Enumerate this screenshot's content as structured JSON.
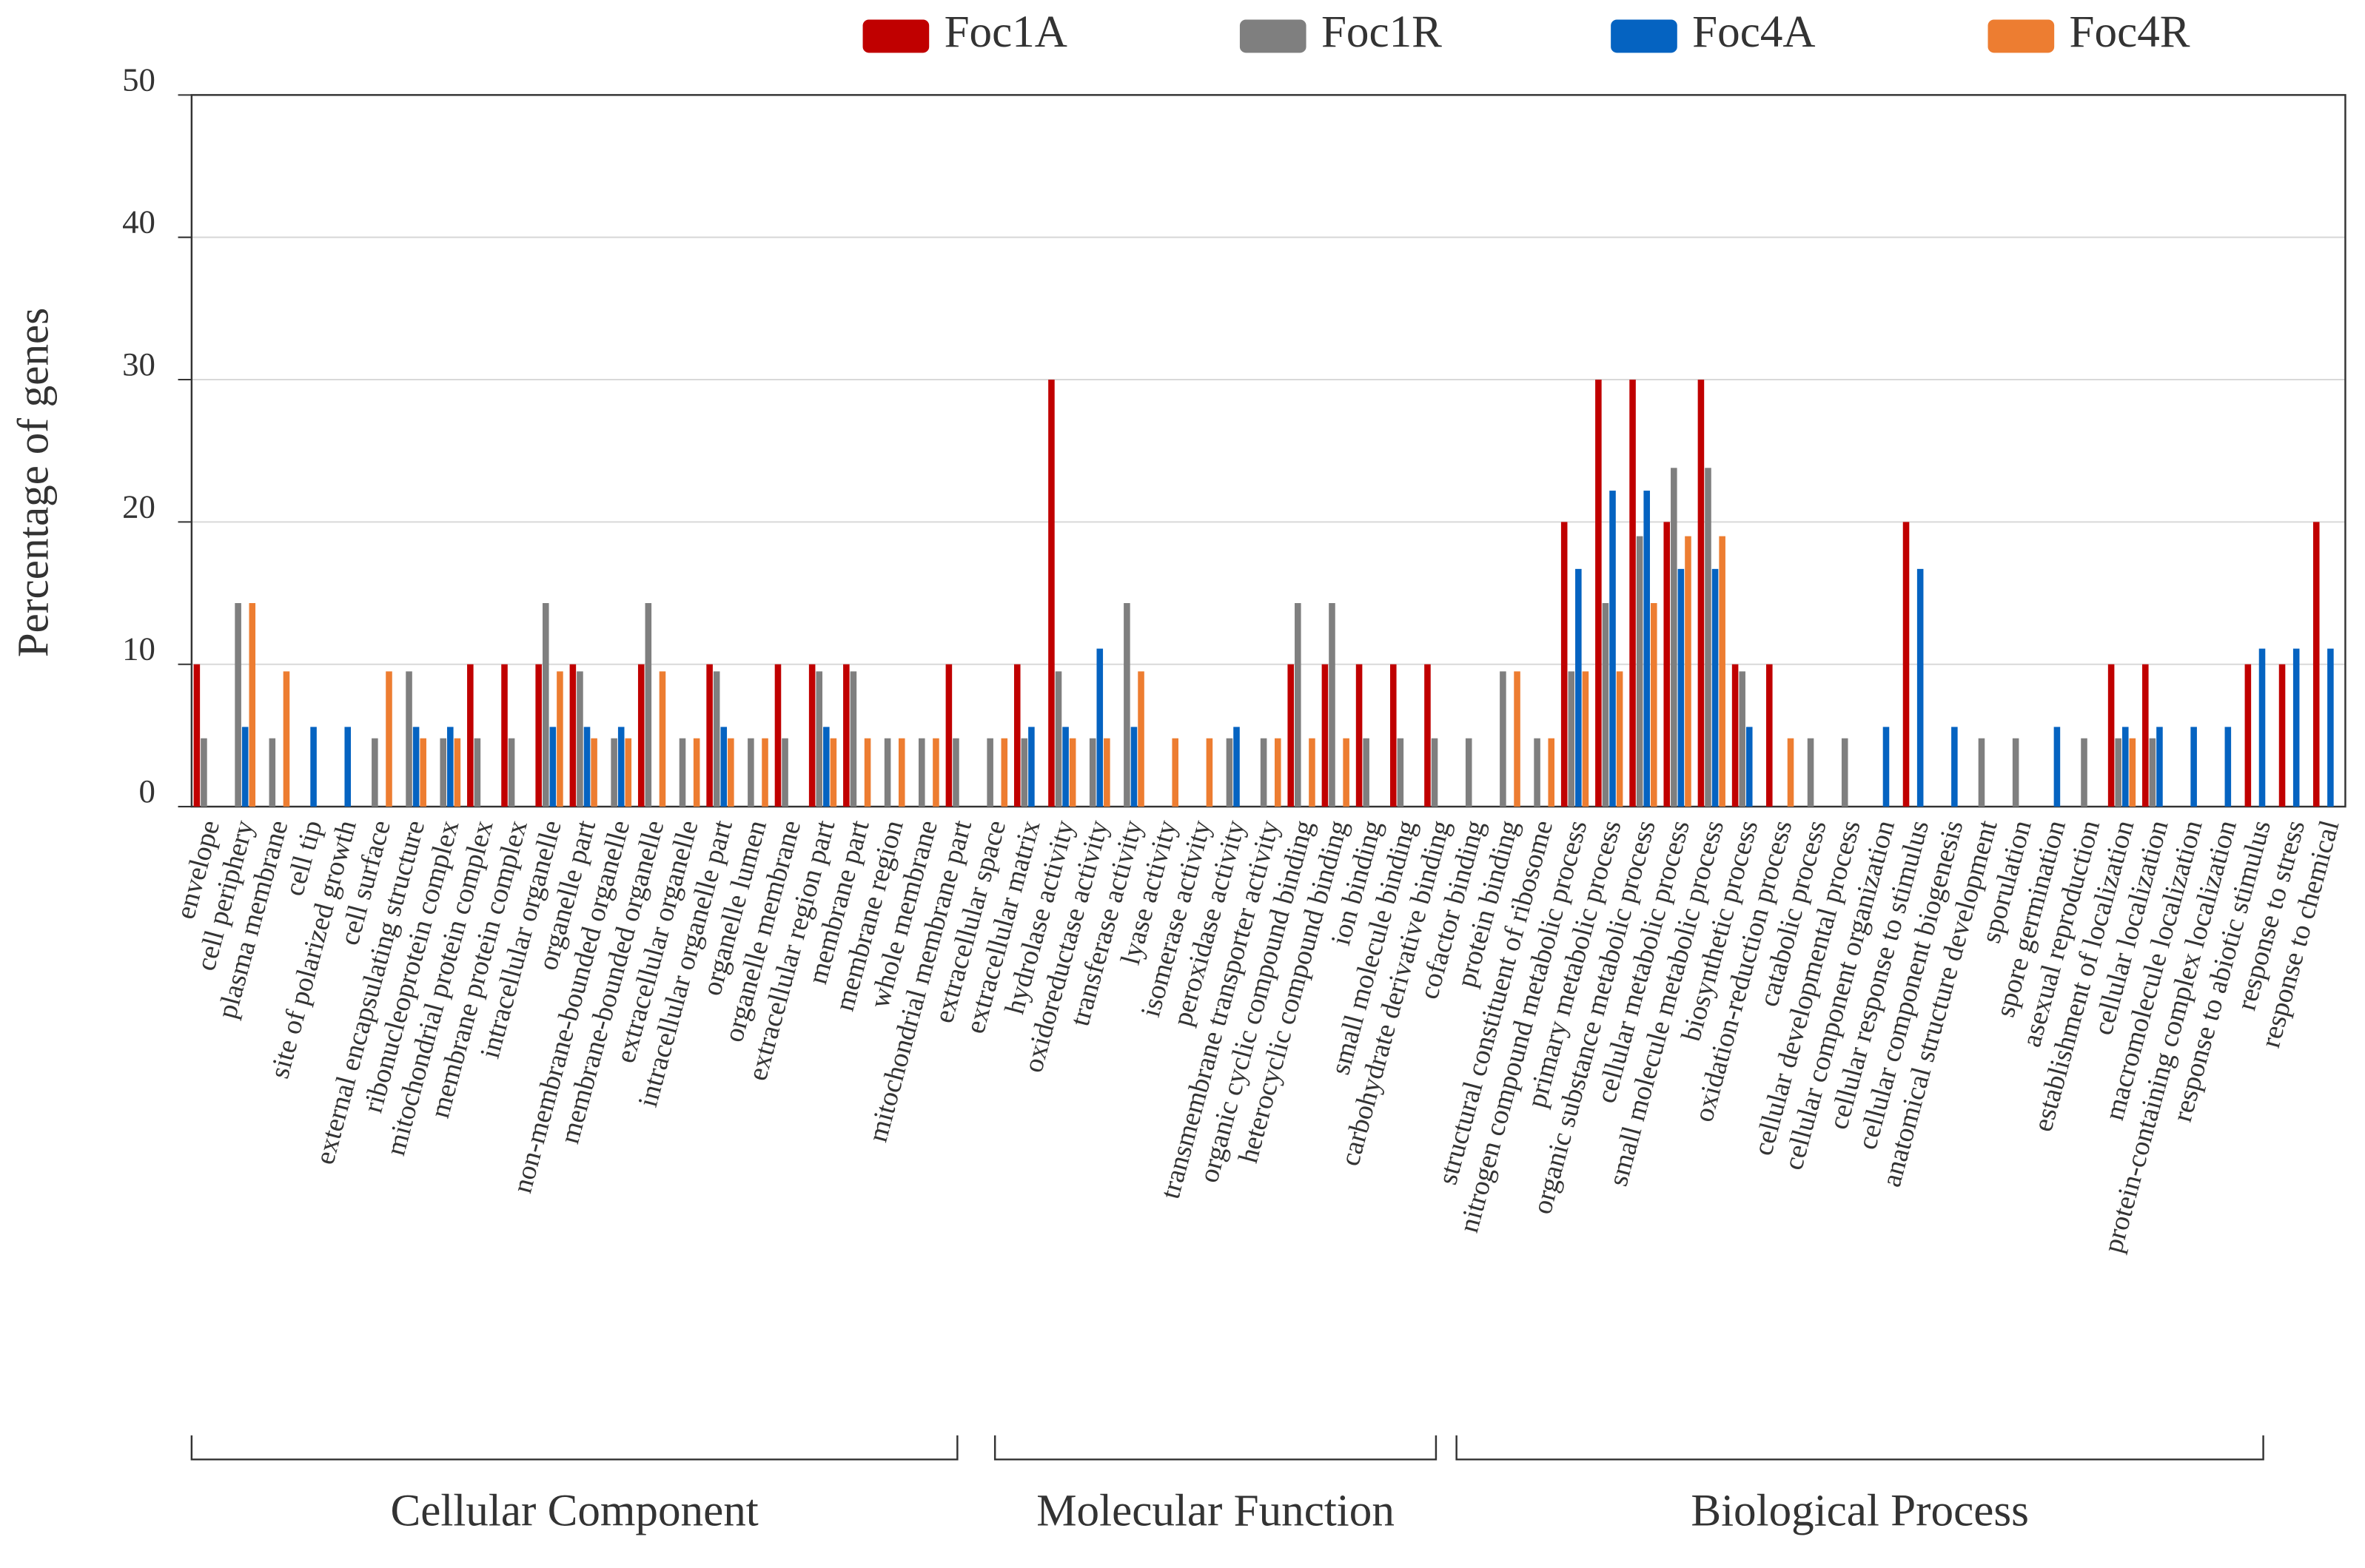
{
  "chart_data": {
    "type": "bar",
    "y_label": "Percentage of genes",
    "ylim": [
      0,
      50
    ],
    "yticks": [
      0,
      10,
      20,
      30,
      40,
      50
    ],
    "grid": true,
    "legend": "top",
    "groups": [
      "Cellular Component",
      "Molecular Function",
      "Biological Process"
    ],
    "categories": [
      "envelope",
      "cell periphery",
      "plasma membrane",
      "cell tip",
      "site of polarized growth",
      "cell surface",
      "external encapsulating structure",
      "ribonucleoprotein complex",
      "mitochondrial protein complex",
      "membrane protein complex",
      "intracellular organelle",
      "organelle part",
      "non-membrane-bounded organelle",
      "membrane-bounded organelle",
      "extracellular organelle",
      "intracellular organelle part",
      "organelle lumen",
      "organelle membrane",
      "extracellular region part",
      "membrane part",
      "membrane region",
      "whole membrane",
      "mitochondrial membrane part",
      "extracellular space",
      "extracellular matrix",
      "hydrolase activity",
      "oxidoreductase activity",
      "transferase activity",
      "lyase activity",
      "isomerase activity",
      "peroxidase activity",
      "transmembrane transporter activity",
      "organic cyclic compound binding",
      "heterocyclic compound binding",
      "ion binding",
      "small molecule binding",
      "carbohydrate derivative binding",
      "cofactor binding",
      "protein binding",
      "structural constituent of ribosome",
      "nitrogen compound metabolic process",
      "primary metabolic process",
      "organic substance metabolic process",
      "cellular metabolic process",
      "small molecule metabolic process",
      "biosynthetic process",
      "oxidation-reduction process",
      "catabolic process",
      "cellular developmental process",
      "cellular component organization",
      "cellular response to stimulus",
      "cellular component biogenesis",
      "anatomical structure development",
      "sporulation",
      "spore germination",
      "asexual reproduction",
      "establishment of localization",
      "cellular localization",
      "macromolecule localization",
      "protein-containing complex localization",
      "response to abiotic stimulus",
      "response to stress",
      "response to chemical"
    ],
    "series": [
      {
        "name": "Foc1A",
        "color": "#c00000",
        "values": [
          10,
          0,
          0,
          0,
          0,
          0,
          0,
          0,
          10,
          10,
          10,
          10,
          0,
          10,
          0,
          10,
          0,
          10,
          10,
          10,
          0,
          0,
          10,
          0,
          10,
          30,
          0,
          0,
          0,
          0,
          0,
          0,
          10,
          10,
          10,
          10,
          10,
          0,
          0,
          0,
          20,
          30,
          30,
          20,
          30,
          10,
          10,
          0,
          0,
          0,
          20,
          0,
          0,
          0,
          0,
          0,
          10,
          10,
          0,
          0,
          10,
          10,
          20
        ]
      },
      {
        "name": "Foc1R",
        "color": "#7f7f7f",
        "values": [
          4.8,
          14.3,
          4.8,
          0,
          0,
          4.8,
          9.5,
          4.8,
          4.8,
          4.8,
          14.3,
          9.5,
          4.8,
          14.3,
          4.8,
          9.5,
          4.8,
          4.8,
          9.5,
          9.5,
          4.8,
          4.8,
          4.8,
          4.8,
          4.8,
          9.5,
          4.8,
          14.3,
          0,
          0,
          4.8,
          4.8,
          14.3,
          14.3,
          4.8,
          4.8,
          4.8,
          4.8,
          9.5,
          4.8,
          9.5,
          14.3,
          19,
          23.8,
          23.8,
          9.5,
          0,
          4.8,
          4.8,
          0,
          0,
          0,
          4.8,
          4.8,
          0,
          4.8,
          4.8,
          4.8,
          0,
          0,
          0,
          0,
          0
        ]
      },
      {
        "name": "Foc4A",
        "color": "#0563c1",
        "values": [
          0,
          5.6,
          0,
          5.6,
          5.6,
          0,
          5.6,
          5.6,
          0,
          0,
          5.6,
          5.6,
          5.6,
          0,
          0,
          5.6,
          0,
          0,
          5.6,
          0,
          0,
          0,
          0,
          0,
          5.6,
          5.6,
          11.1,
          5.6,
          0,
          0,
          5.6,
          0,
          0,
          0,
          0,
          0,
          0,
          0,
          0,
          0,
          16.7,
          22.2,
          22.2,
          16.7,
          16.7,
          5.6,
          0,
          0,
          0,
          5.6,
          16.7,
          5.6,
          0,
          0,
          5.6,
          0,
          5.6,
          5.6,
          5.6,
          5.6,
          11.1,
          11.1,
          11.1
        ]
      },
      {
        "name": "Foc4R",
        "color": "#ed7d31",
        "values": [
          0,
          14.3,
          9.5,
          0,
          0,
          9.5,
          4.8,
          4.8,
          0,
          0,
          9.5,
          4.8,
          4.8,
          9.5,
          4.8,
          4.8,
          4.8,
          0,
          4.8,
          4.8,
          4.8,
          4.8,
          0,
          4.8,
          0,
          4.8,
          4.8,
          9.5,
          4.8,
          4.8,
          0,
          4.8,
          4.8,
          4.8,
          0,
          0,
          0,
          0,
          9.5,
          4.8,
          9.5,
          9.5,
          14.3,
          19,
          19,
          0,
          4.8,
          0,
          0,
          0,
          0,
          0,
          0,
          0,
          0,
          0,
          4.8,
          0,
          0,
          0,
          0,
          0,
          0
        ]
      }
    ]
  }
}
